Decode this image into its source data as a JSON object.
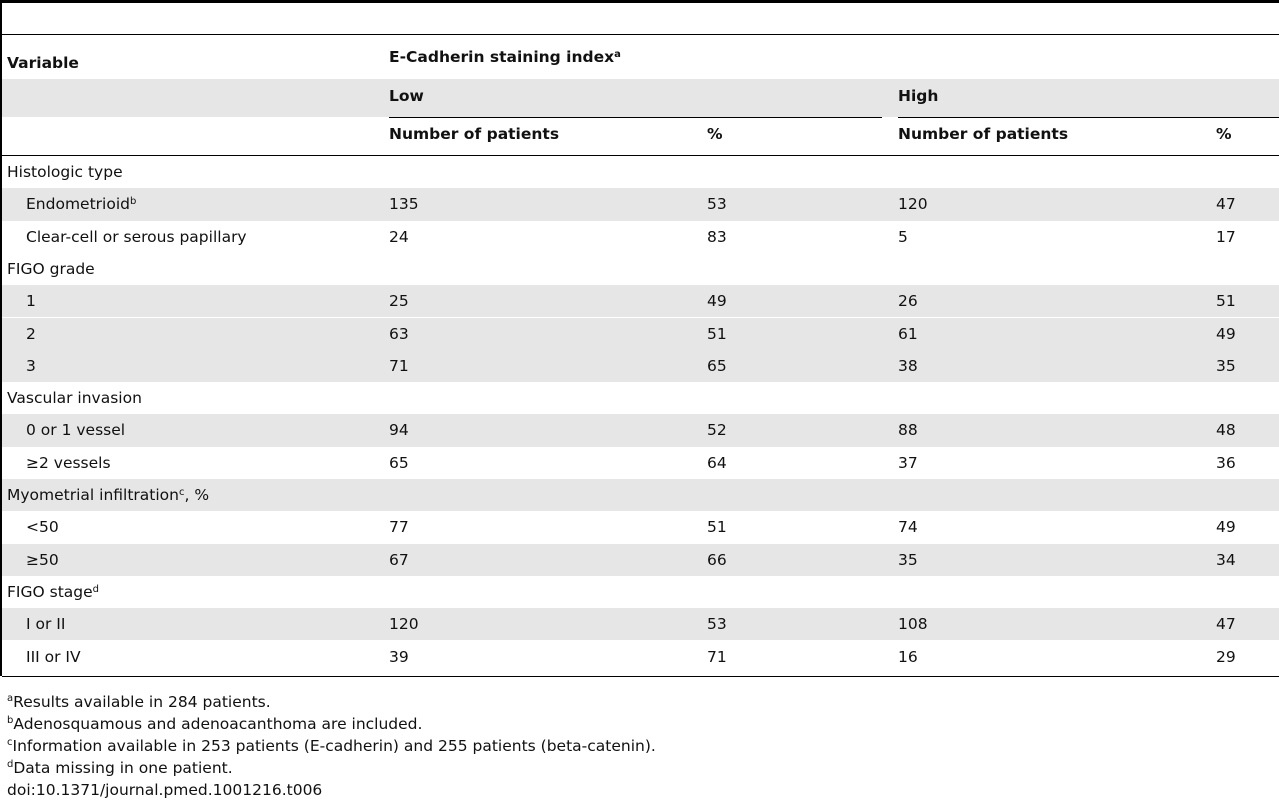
{
  "table": {
    "header": {
      "variable": "Variable",
      "group_title": "E-Cadherin staining index",
      "group_title_sup": "a",
      "low": "Low",
      "high": "High",
      "low_count": "Number of patients",
      "low_pct": "%",
      "high_count": "Number of patients",
      "high_pct": "%"
    },
    "rows": [
      {
        "label": "Histologic type",
        "sup": "",
        "indent": false,
        "low_n": "",
        "low_pct": "",
        "high_n": "",
        "high_pct": "",
        "shaded": false
      },
      {
        "label": "Endometrioid",
        "sup": "b",
        "indent": true,
        "low_n": "135",
        "low_pct": "53",
        "high_n": "120",
        "high_pct": "47",
        "shaded": true
      },
      {
        "label": "Clear-cell or serous papillary",
        "sup": "",
        "indent": true,
        "low_n": "24",
        "low_pct": "83",
        "high_n": "5",
        "high_pct": "17",
        "shaded": false
      },
      {
        "label": "FIGO grade",
        "sup": "",
        "indent": false,
        "low_n": "",
        "low_pct": "",
        "high_n": "",
        "high_pct": "",
        "shaded": false
      },
      {
        "label": "1",
        "sup": "",
        "indent": true,
        "low_n": "25",
        "low_pct": "49",
        "high_n": "26",
        "high_pct": "51",
        "shaded": true
      },
      {
        "label": "2",
        "sup": "",
        "indent": true,
        "low_n": "63",
        "low_pct": "51",
        "high_n": "61",
        "high_pct": "49",
        "shaded": true
      },
      {
        "label": "3",
        "sup": "",
        "indent": true,
        "low_n": "71",
        "low_pct": "65",
        "high_n": "38",
        "high_pct": "35",
        "shaded": true
      },
      {
        "label": "Vascular invasion",
        "sup": "",
        "indent": false,
        "low_n": "",
        "low_pct": "",
        "high_n": "",
        "high_pct": "",
        "shaded": false
      },
      {
        "label": "0 or 1 vessel",
        "sup": "",
        "indent": true,
        "low_n": "94",
        "low_pct": "52",
        "high_n": "88",
        "high_pct": "48",
        "shaded": true
      },
      {
        "label": "≥2 vessels",
        "sup": "",
        "indent": true,
        "low_n": "65",
        "low_pct": "64",
        "high_n": "37",
        "high_pct": "36",
        "shaded": false
      },
      {
        "label": "Myometrial infiltration",
        "sup": "c",
        "suffix": ", %",
        "indent": false,
        "low_n": "",
        "low_pct": "",
        "high_n": "",
        "high_pct": "",
        "shaded": true
      },
      {
        "label": "<50",
        "sup": "",
        "indent": true,
        "low_n": "77",
        "low_pct": "51",
        "high_n": "74",
        "high_pct": "49",
        "shaded": false
      },
      {
        "label": "≥50",
        "sup": "",
        "indent": true,
        "low_n": "67",
        "low_pct": "66",
        "high_n": "35",
        "high_pct": "34",
        "shaded": true
      },
      {
        "label": "FIGO stage",
        "sup": "d",
        "indent": false,
        "low_n": "",
        "low_pct": "",
        "high_n": "",
        "high_pct": "",
        "shaded": false
      },
      {
        "label": "I or II",
        "sup": "",
        "indent": true,
        "low_n": "120",
        "low_pct": "53",
        "high_n": "108",
        "high_pct": "47",
        "shaded": true
      },
      {
        "label": "III or IV",
        "sup": "",
        "indent": true,
        "low_n": "39",
        "low_pct": "71",
        "high_n": "16",
        "high_pct": "29",
        "shaded": false
      }
    ]
  },
  "footnotes": [
    {
      "mark": "a",
      "text": "Results available in 284 patients."
    },
    {
      "mark": "b",
      "text": "Adenosquamous and adenoacanthoma are included."
    },
    {
      "mark": "c",
      "text": "Information available in 253 patients (E-cadherin) and 255 patients (beta-catenin)."
    },
    {
      "mark": "d",
      "text": "Data missing in one patient."
    },
    {
      "mark": "",
      "text": "doi:10.1371/journal.pmed.1001216.t006"
    }
  ]
}
